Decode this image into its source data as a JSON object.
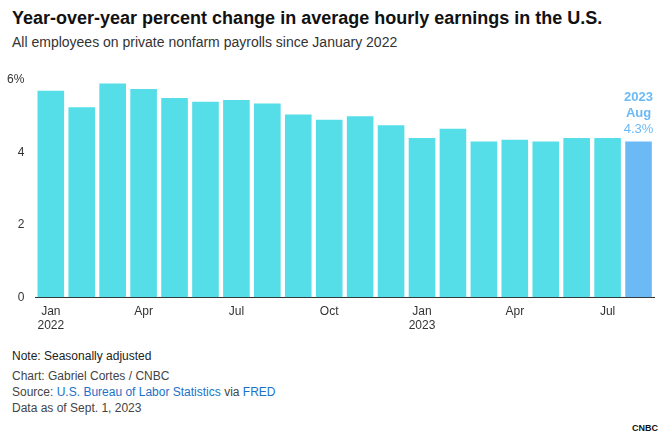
{
  "chart_data": {
    "type": "bar",
    "title": "Year-over-year percent change in average hourly earnings in the U.S.",
    "subtitle": "All employees on private nonfarm payrolls since January 2022",
    "categories": [
      "Jan\n2022",
      null,
      null,
      "Apr",
      null,
      null,
      "Jul",
      null,
      null,
      "Oct",
      null,
      null,
      "Jan\n2023",
      null,
      null,
      "Apr",
      null,
      null,
      "Jul",
      null
    ],
    "values": [
      5.7,
      5.25,
      5.9,
      5.75,
      5.5,
      5.4,
      5.45,
      5.35,
      5.05,
      4.9,
      5.0,
      4.75,
      4.4,
      4.65,
      4.3,
      4.35,
      4.3,
      4.4,
      4.4,
      4.3
    ],
    "colors": [
      "#55dde8",
      "#55dde8",
      "#55dde8",
      "#55dde8",
      "#55dde8",
      "#55dde8",
      "#55dde8",
      "#55dde8",
      "#55dde8",
      "#55dde8",
      "#55dde8",
      "#55dde8",
      "#55dde8",
      "#55dde8",
      "#55dde8",
      "#55dde8",
      "#55dde8",
      "#55dde8",
      "#55dde8",
      "#6cbaf5"
    ],
    "ylim": [
      0,
      6
    ],
    "yticks": [
      0,
      2,
      4,
      {
        "value": 6,
        "label": "6%"
      }
    ],
    "grid": false,
    "annotation": {
      "index": 19,
      "text": [
        "2023",
        "Aug"
      ],
      "label": "4.3%"
    },
    "notes": [
      "Note: Seasonally adjusted",
      "Chart: Gabriel Cortes / CNBC"
    ],
    "source": [
      {
        "text": "Source:"
      },
      {
        "text": "U.S. Bureau of Labor Statistics",
        "link": true
      },
      {
        "text": "via"
      },
      {
        "text": "FRED",
        "link": true
      }
    ],
    "data_as_of": "Data as of Sept. 1, 2023",
    "logo": "CNBC"
  }
}
